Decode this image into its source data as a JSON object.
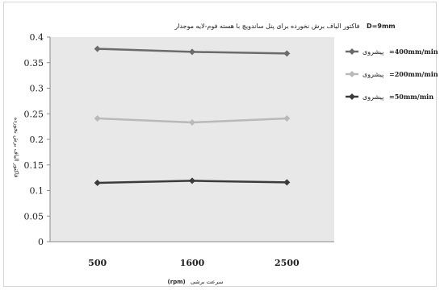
{
  "chart_data": {
    "type": "line",
    "title": "فاکتور الیاف برش نخورده برای پنل ساندویچ با هسته فوم-لایه موجدار",
    "title_tag": "D=9mm",
    "xlabel": "سرعت برشی",
    "xlabel_unit": "(rpm)",
    "ylabel": "فاکتور الیاف برش نخورده",
    "categories": [
      "500",
      "1600",
      "2500"
    ],
    "ylim": [
      0,
      0.4
    ],
    "yticks": [
      "0",
      "0.05",
      "0.1",
      "0.15",
      "0.2",
      "0.25",
      "0.3",
      "0.35",
      "0.4"
    ],
    "grid": false,
    "legend_position": "right",
    "plot_background": "#e8e8e8",
    "series": [
      {
        "name": "پیشروی",
        "value_label": "=400mm/min",
        "color": "#6b6b6b",
        "values": [
          0.377,
          0.371,
          0.368
        ]
      },
      {
        "name": "پیشروی",
        "value_label": "=200mm/min",
        "color": "#b9b9b9",
        "values": [
          0.241,
          0.233,
          0.241
        ]
      },
      {
        "name": "پیشروی",
        "value_label": "=50mm/min",
        "color": "#3b3b3b",
        "values": [
          0.115,
          0.119,
          0.116
        ]
      }
    ]
  }
}
